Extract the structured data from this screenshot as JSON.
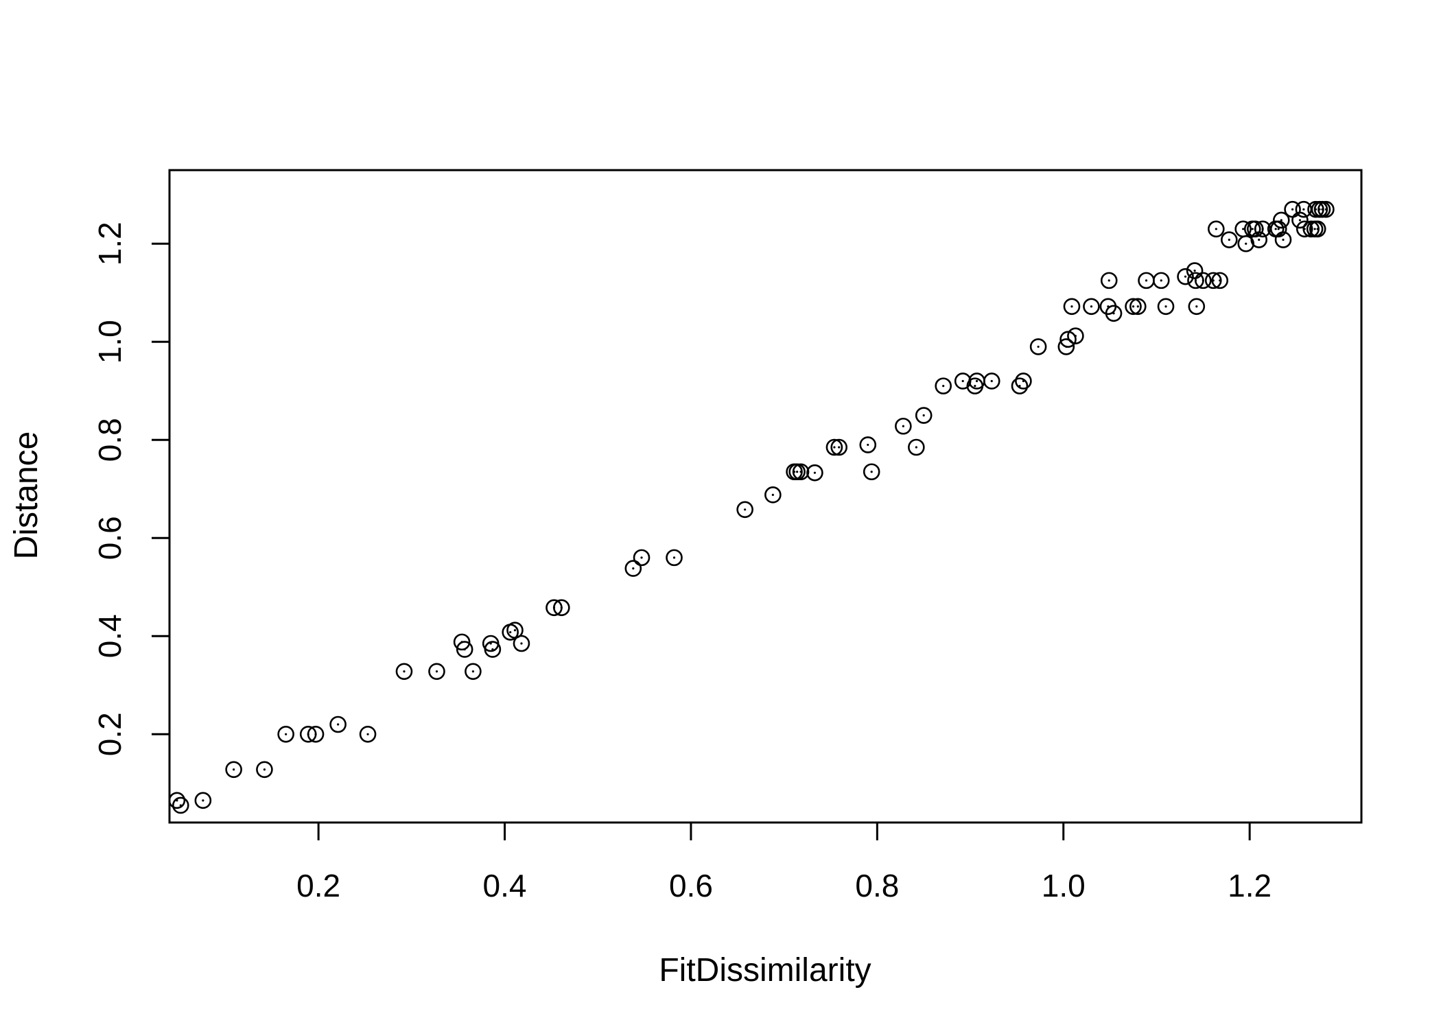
{
  "chart_data": {
    "type": "scatter",
    "title": "",
    "xlabel": "FitDissimilarity",
    "ylabel": "Distance",
    "xlim": [
      0.04,
      1.32
    ],
    "ylim": [
      0.02,
      1.35
    ],
    "xticks": [
      0.2,
      0.4,
      0.6,
      0.8,
      1.0,
      1.2
    ],
    "xtick_labels": [
      "0.2",
      "0.4",
      "0.6",
      "0.8",
      "1.0",
      "1.2"
    ],
    "yticks": [
      0.2,
      0.4,
      0.6,
      0.8,
      1.0,
      1.2
    ],
    "ytick_labels": [
      "0.2",
      "0.4",
      "0.6",
      "0.8",
      "1.0",
      "1.2"
    ],
    "grid": false,
    "legend": "none",
    "marker": "open-circle-with-dot",
    "color": "#000000",
    "points": [
      [
        0.048,
        0.065
      ],
      [
        0.052,
        0.055
      ],
      [
        0.076,
        0.065
      ],
      [
        0.109,
        0.128
      ],
      [
        0.142,
        0.128
      ],
      [
        0.165,
        0.2
      ],
      [
        0.189,
        0.2
      ],
      [
        0.197,
        0.2
      ],
      [
        0.221,
        0.22
      ],
      [
        0.253,
        0.2
      ],
      [
        0.292,
        0.328
      ],
      [
        0.327,
        0.328
      ],
      [
        0.354,
        0.388
      ],
      [
        0.357,
        0.373
      ],
      [
        0.366,
        0.328
      ],
      [
        0.385,
        0.385
      ],
      [
        0.387,
        0.373
      ],
      [
        0.406,
        0.408
      ],
      [
        0.411,
        0.412
      ],
      [
        0.418,
        0.385
      ],
      [
        0.453,
        0.458
      ],
      [
        0.461,
        0.458
      ],
      [
        0.538,
        0.538
      ],
      [
        0.547,
        0.56
      ],
      [
        0.582,
        0.56
      ],
      [
        0.658,
        0.658
      ],
      [
        0.688,
        0.688
      ],
      [
        0.711,
        0.735
      ],
      [
        0.714,
        0.735
      ],
      [
        0.718,
        0.735
      ],
      [
        0.733,
        0.733
      ],
      [
        0.754,
        0.785
      ],
      [
        0.759,
        0.785
      ],
      [
        0.79,
        0.79
      ],
      [
        0.794,
        0.735
      ],
      [
        0.828,
        0.828
      ],
      [
        0.842,
        0.785
      ],
      [
        0.85,
        0.85
      ],
      [
        0.871,
        0.91
      ],
      [
        0.892,
        0.92
      ],
      [
        0.905,
        0.91
      ],
      [
        0.907,
        0.92
      ],
      [
        0.923,
        0.92
      ],
      [
        0.953,
        0.91
      ],
      [
        0.957,
        0.92
      ],
      [
        0.973,
        0.99
      ],
      [
        1.003,
        0.99
      ],
      [
        1.005,
        1.005
      ],
      [
        1.009,
        1.072
      ],
      [
        1.013,
        1.012
      ],
      [
        1.03,
        1.072
      ],
      [
        1.048,
        1.072
      ],
      [
        1.049,
        1.125
      ],
      [
        1.054,
        1.058
      ],
      [
        1.075,
        1.072
      ],
      [
        1.08,
        1.072
      ],
      [
        1.089,
        1.125
      ],
      [
        1.105,
        1.125
      ],
      [
        1.11,
        1.072
      ],
      [
        1.131,
        1.133
      ],
      [
        1.141,
        1.145
      ],
      [
        1.142,
        1.125
      ],
      [
        1.143,
        1.072
      ],
      [
        1.15,
        1.125
      ],
      [
        1.161,
        1.125
      ],
      [
        1.164,
        1.23
      ],
      [
        1.168,
        1.125
      ],
      [
        1.178,
        1.208
      ],
      [
        1.193,
        1.23
      ],
      [
        1.196,
        1.2
      ],
      [
        1.203,
        1.23
      ],
      [
        1.206,
        1.23
      ],
      [
        1.21,
        1.208
      ],
      [
        1.214,
        1.23
      ],
      [
        1.228,
        1.23
      ],
      [
        1.231,
        1.23
      ],
      [
        1.234,
        1.248
      ],
      [
        1.236,
        1.208
      ],
      [
        1.246,
        1.27
      ],
      [
        1.254,
        1.248
      ],
      [
        1.258,
        1.27
      ],
      [
        1.259,
        1.23
      ],
      [
        1.266,
        1.23
      ],
      [
        1.27,
        1.23
      ],
      [
        1.271,
        1.27
      ],
      [
        1.273,
        1.23
      ],
      [
        1.275,
        1.27
      ],
      [
        1.278,
        1.27
      ],
      [
        1.282,
        1.27
      ]
    ]
  }
}
